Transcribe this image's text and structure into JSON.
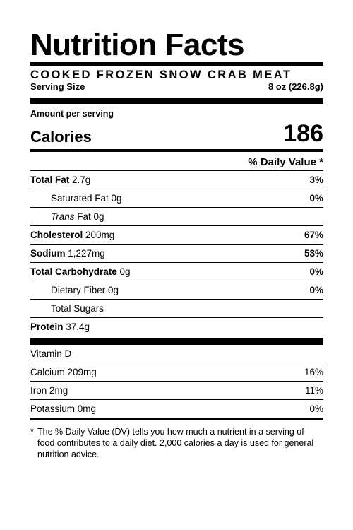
{
  "label": {
    "title": "Nutrition Facts",
    "product_name": "COOKED FROZEN SNOW CRAB MEAT",
    "serving_size_label": "Serving Size",
    "serving_size_value": "8 oz (226.8g)",
    "amount_per_serving": "Amount per serving",
    "calories_label": "Calories",
    "calories_value": "186",
    "daily_value_header": "% Daily Value *"
  },
  "nutrients": {
    "total_fat": {
      "name": "Total Fat",
      "amount": "2.7g",
      "dv": "3%"
    },
    "saturated_fat": {
      "name": "Saturated Fat 0g",
      "dv": "0%"
    },
    "trans_fat": {
      "name_italic": "Trans",
      "name_rest": "Fat 0g"
    },
    "cholesterol": {
      "name": "Cholesterol",
      "amount": "200mg",
      "dv": "67%"
    },
    "sodium": {
      "name": "Sodium",
      "amount": "1,227mg",
      "dv": "53%"
    },
    "total_carb": {
      "name": "Total Carbohydrate",
      "amount": "0g",
      "dv": "0%"
    },
    "dietary_fiber": {
      "name": "Dietary Fiber 0g",
      "dv": "0%"
    },
    "total_sugars": {
      "name": "Total Sugars"
    },
    "protein": {
      "name": "Protein",
      "amount": "37.4g"
    }
  },
  "vitamins": {
    "vitamin_d": {
      "name": "Vitamin D"
    },
    "calcium": {
      "name": "Calcium 209mg",
      "dv": "16%"
    },
    "iron": {
      "name": "Iron 2mg",
      "dv": "11%"
    },
    "potassium": {
      "name": "Potassium 0mg",
      "dv": "0%"
    }
  },
  "footnote": {
    "star": "*",
    "text": "The % Daily Value (DV) tells you how much a nutrient in a serving of food contributes to a daily diet. 2,000 calories a day is used for general nutrition advice."
  }
}
